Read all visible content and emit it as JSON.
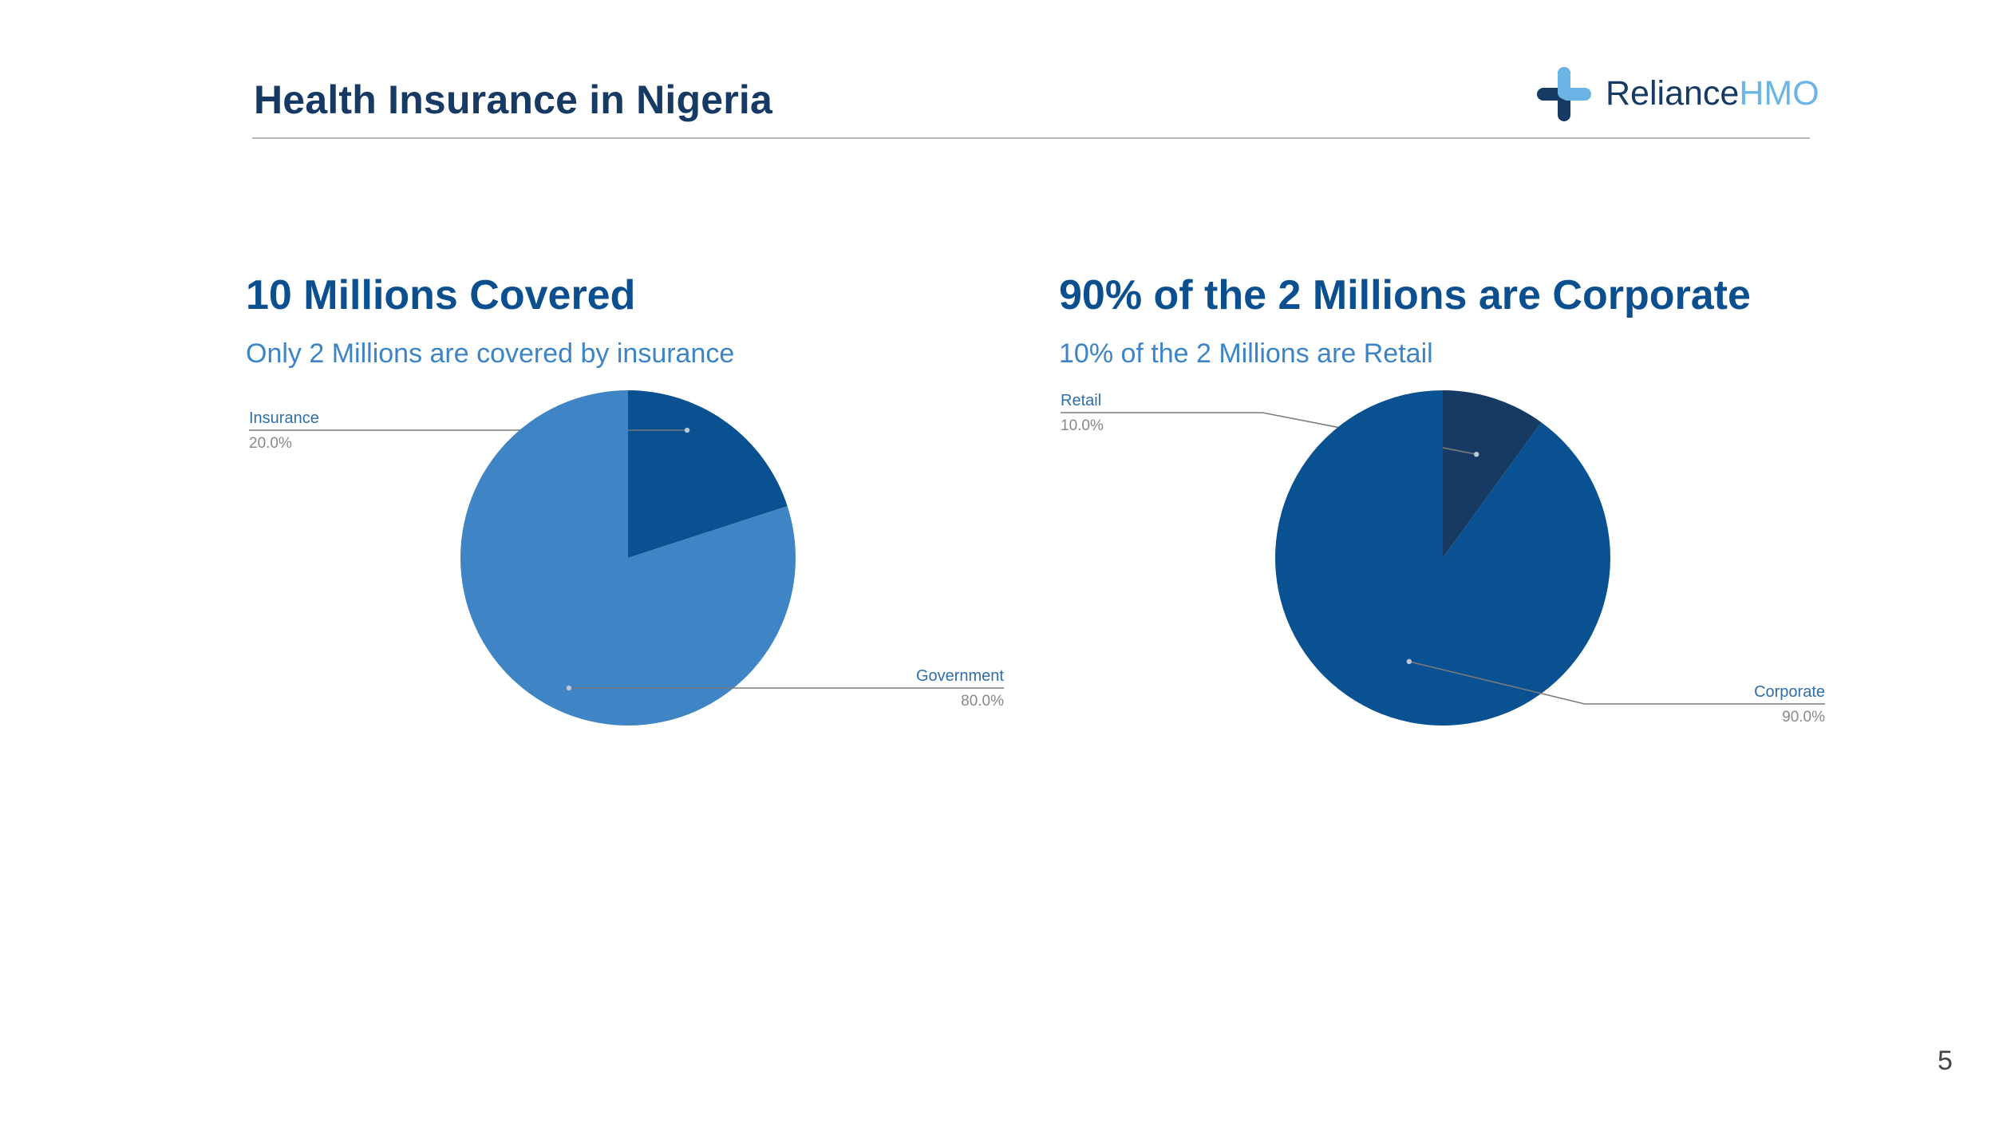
{
  "header": {
    "title": "Health Insurance in Nigeria",
    "logo_text_primary": "Reliance",
    "logo_text_secondary": "HMO"
  },
  "colors": {
    "dark_navy": "#173a64",
    "brand_light": "#6cb4e6",
    "title_blue": "#0b4f8f",
    "subtitle_blue": "#3d84c6",
    "label_blue": "#2f6ea8",
    "label_gray": "#888888"
  },
  "chart_data": [
    {
      "type": "pie",
      "title": "10 Millions Covered",
      "subtitle": "Only 2 Millions are covered by insurance",
      "slices": [
        {
          "label": "Insurance",
          "value": 20.0,
          "percent_label": "20.0%",
          "color": "#0a5192"
        },
        {
          "label": "Government",
          "value": 80.0,
          "percent_label": "80.0%",
          "color": "#3f85c6"
        }
      ]
    },
    {
      "type": "pie",
      "title": "90% of the 2 Millions are Corporate",
      "subtitle": "10% of the 2 Millions are Retail",
      "slices": [
        {
          "label": "Retail",
          "value": 10.0,
          "percent_label": "10.0%",
          "color": "#163a64"
        },
        {
          "label": "Corporate",
          "value": 90.0,
          "percent_label": "90.0%",
          "color": "#0a5192"
        }
      ]
    }
  ],
  "footer": {
    "page_number": "5"
  }
}
